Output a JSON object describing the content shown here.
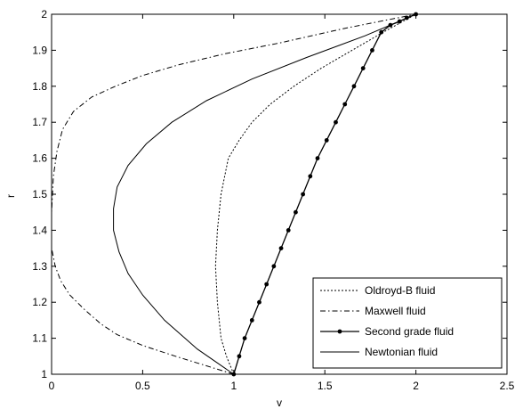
{
  "chart_data": {
    "type": "line",
    "xlabel": "v",
    "ylabel": "r",
    "xlim": [
      0,
      2.5
    ],
    "ylim": [
      1,
      2
    ],
    "xticks": [
      "0",
      "0.5",
      "1",
      "1.5",
      "2",
      "2.5"
    ],
    "yticks": [
      "1",
      "1.1",
      "1.2",
      "1.3",
      "1.4",
      "1.5",
      "1.6",
      "1.7",
      "1.8",
      "1.9",
      "2"
    ],
    "grid": false,
    "legend_position": "bottom-right",
    "series": [
      {
        "name": "Oldroyd-B fluid",
        "style": "dotted",
        "marker": "none",
        "x": [
          1.0,
          0.96,
          0.93,
          0.91,
          0.9,
          0.91,
          0.93,
          0.97,
          1.03,
          1.1,
          1.2,
          1.33,
          1.48,
          1.65,
          1.82,
          2.0
        ],
        "y": [
          1.0,
          1.05,
          1.1,
          1.2,
          1.3,
          1.4,
          1.5,
          1.6,
          1.65,
          1.7,
          1.75,
          1.8,
          1.85,
          1.9,
          1.95,
          2.0
        ]
      },
      {
        "name": "Maxwell fluid",
        "style": "dashdot",
        "marker": "none",
        "x": [
          1.0,
          0.68,
          0.5,
          0.36,
          0.27,
          0.18,
          0.1,
          0.05,
          0.02,
          0.0,
          0.0,
          0.01,
          0.03,
          0.06,
          0.12,
          0.22,
          0.35,
          0.5,
          0.7,
          0.95,
          1.25,
          1.6,
          2.0
        ],
        "y": [
          1.0,
          1.05,
          1.08,
          1.11,
          1.14,
          1.18,
          1.22,
          1.26,
          1.3,
          1.35,
          1.45,
          1.55,
          1.62,
          1.68,
          1.73,
          1.77,
          1.8,
          1.83,
          1.86,
          1.89,
          1.92,
          1.96,
          2.0
        ]
      },
      {
        "name": "Second grade fluid",
        "style": "solid",
        "marker": "dot",
        "x": [
          1.0,
          1.03,
          1.06,
          1.1,
          1.14,
          1.18,
          1.22,
          1.26,
          1.3,
          1.34,
          1.38,
          1.42,
          1.46,
          1.51,
          1.56,
          1.61,
          1.66,
          1.71,
          1.76,
          1.81,
          1.86,
          1.91,
          1.95,
          2.0
        ],
        "y": [
          1.0,
          1.05,
          1.1,
          1.15,
          1.2,
          1.25,
          1.3,
          1.35,
          1.4,
          1.45,
          1.5,
          1.55,
          1.6,
          1.65,
          1.7,
          1.75,
          1.8,
          1.85,
          1.9,
          1.95,
          1.97,
          1.98,
          1.99,
          2.0
        ]
      },
      {
        "name": "Newtonian fluid",
        "style": "solid",
        "marker": "none",
        "x": [
          1.0,
          0.8,
          0.62,
          0.5,
          0.42,
          0.37,
          0.34,
          0.34,
          0.36,
          0.42,
          0.52,
          0.66,
          0.85,
          1.1,
          1.4,
          1.72,
          2.0
        ],
        "y": [
          1.0,
          1.07,
          1.15,
          1.22,
          1.28,
          1.34,
          1.4,
          1.46,
          1.52,
          1.58,
          1.64,
          1.7,
          1.76,
          1.82,
          1.88,
          1.94,
          2.0
        ]
      }
    ]
  }
}
